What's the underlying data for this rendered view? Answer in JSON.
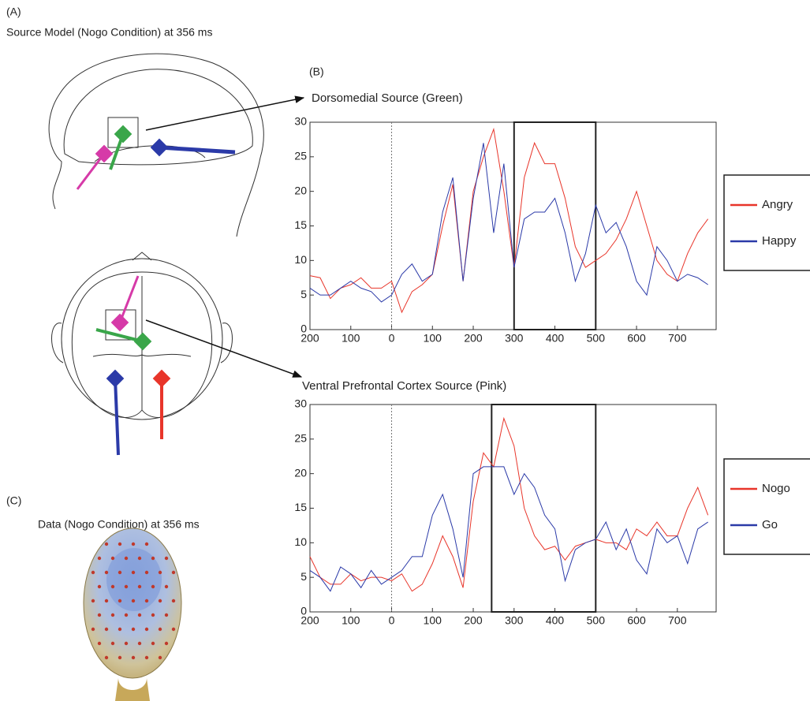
{
  "panels": {
    "a": "(A)",
    "a_title": "Source Model (Nogo Condition) at 356 ms",
    "b": "(B)",
    "c": "(C)",
    "c_title": "Data (Nogo Condition) at 356 ms"
  },
  "chart_data": [
    {
      "type": "line",
      "title": "Dorsomedial Source (Green)",
      "x": [
        -200,
        -175,
        -150,
        -125,
        -100,
        -75,
        -50,
        -25,
        0,
        25,
        50,
        75,
        100,
        125,
        150,
        175,
        200,
        225,
        250,
        275,
        300,
        325,
        350,
        375,
        400,
        425,
        450,
        475,
        500,
        525,
        550,
        575,
        600,
        625,
        650,
        675,
        700,
        725,
        750,
        775
      ],
      "series": [
        {
          "name": "Angry",
          "color": "#e8352a",
          "values": [
            7.8,
            7.5,
            4.5,
            6,
            6.5,
            7.5,
            6,
            6,
            7,
            2.5,
            5.5,
            6.5,
            8,
            15,
            21,
            7,
            20,
            25,
            29,
            20,
            9,
            22,
            27,
            24,
            24,
            19,
            12,
            9,
            10,
            11,
            13,
            16,
            20,
            15,
            10,
            8,
            7,
            11,
            14,
            16
          ]
        },
        {
          "name": "Happy",
          "color": "#2b3aa8",
          "values": [
            6,
            5,
            5,
            6,
            7,
            6,
            5.5,
            4,
            5,
            8,
            9.5,
            7,
            8,
            17,
            22,
            7,
            19,
            27,
            14,
            24,
            9,
            16,
            17,
            17,
            19,
            14,
            7,
            11,
            18,
            14,
            15.5,
            12,
            7,
            5,
            12,
            10,
            7,
            8,
            7.5,
            6.5
          ]
        }
      ],
      "window": [
        300,
        500
      ],
      "xlim": [
        -200,
        795
      ],
      "ylim": [
        0,
        30
      ],
      "xticks": [
        {
          "value": -200,
          "label": "200"
        },
        {
          "value": -100,
          "label": "100"
        },
        0,
        100,
        200,
        300,
        400,
        500,
        600,
        700
      ],
      "yticks": [
        0,
        5,
        10,
        15,
        20,
        25,
        30
      ],
      "grid": false,
      "legend": "right"
    },
    {
      "type": "line",
      "title": "Ventral Prefrontal Cortex Source (Pink)",
      "x": [
        -200,
        -175,
        -150,
        -125,
        -100,
        -75,
        -50,
        -25,
        0,
        25,
        50,
        75,
        100,
        125,
        150,
        175,
        200,
        225,
        250,
        275,
        300,
        325,
        350,
        375,
        400,
        425,
        450,
        475,
        500,
        525,
        550,
        575,
        600,
        625,
        650,
        675,
        700,
        725,
        750,
        775
      ],
      "series": [
        {
          "name": "Nogo",
          "color": "#e8352a",
          "values": [
            8,
            5,
            4,
            4,
            5.5,
            4.5,
            5,
            5,
            4.5,
            5.5,
            3,
            4,
            7,
            11,
            8,
            3.5,
            16,
            23,
            21,
            28,
            24,
            15,
            11,
            9,
            9.5,
            7.5,
            9.5,
            10,
            10.5,
            10,
            10,
            9,
            12,
            11,
            13,
            11,
            11,
            15,
            18,
            14
          ]
        },
        {
          "name": "Go",
          "color": "#2b3aa8",
          "values": [
            6,
            5,
            3,
            6.5,
            5.5,
            3.5,
            6,
            4,
            5,
            6,
            8,
            8,
            14,
            17,
            12,
            5,
            20,
            21,
            21,
            21,
            17,
            20,
            18,
            14,
            12,
            4.5,
            9,
            10,
            10.5,
            13,
            9,
            12,
            7.5,
            5.5,
            12,
            10,
            11,
            7,
            12,
            13
          ]
        }
      ],
      "window": [
        245,
        500
      ],
      "xlim": [
        -200,
        795
      ],
      "ylim": [
        0,
        30
      ],
      "xticks": [
        {
          "value": -200,
          "label": "200"
        },
        {
          "value": -100,
          "label": "100"
        },
        0,
        100,
        200,
        300,
        400,
        500,
        600,
        700
      ],
      "yticks": [
        0,
        5,
        10,
        15,
        20,
        25,
        30
      ],
      "grid": false,
      "legend": "right"
    }
  ]
}
